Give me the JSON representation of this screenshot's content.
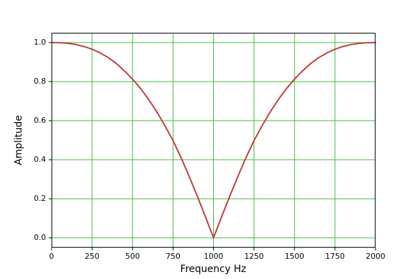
{
  "figure": {
    "background": "#ffffff",
    "frame_color": "#000000"
  },
  "chart_data": {
    "type": "line",
    "title": "",
    "xlabel": "Frequency Hz",
    "ylabel": "Amplitude",
    "xlim": [
      0,
      2000
    ],
    "ylim": [
      -0.05,
      1.05
    ],
    "grid": {
      "visible": true,
      "color": "#3cbe3c"
    },
    "legend": {
      "visible": false
    },
    "x_ticks": [
      {
        "value": 0,
        "label": "0"
      },
      {
        "value": 250,
        "label": "250"
      },
      {
        "value": 500,
        "label": "500"
      },
      {
        "value": 750,
        "label": "750"
      },
      {
        "value": 1000,
        "label": "1000"
      },
      {
        "value": 1250,
        "label": "1250"
      },
      {
        "value": 1500,
        "label": "1500"
      },
      {
        "value": 1750,
        "label": "1750"
      },
      {
        "value": 2000,
        "label": "2000"
      }
    ],
    "y_ticks": [
      {
        "value": 0.0,
        "label": "0.0"
      },
      {
        "value": 0.2,
        "label": "0.2"
      },
      {
        "value": 0.4,
        "label": "0.4"
      },
      {
        "value": 0.6,
        "label": "0.6"
      },
      {
        "value": 0.8,
        "label": "0.8"
      },
      {
        "value": 1.0,
        "label": "1.0"
      }
    ],
    "series": [
      {
        "name": "notch-filter-response",
        "color": "#c23b3c",
        "linewidth": 2,
        "x": [
          0,
          50,
          100,
          150,
          200,
          250,
          300,
          350,
          400,
          450,
          500,
          550,
          600,
          650,
          700,
          750,
          800,
          850,
          900,
          950,
          1000,
          1050,
          1100,
          1150,
          1200,
          1250,
          1300,
          1350,
          1400,
          1450,
          1500,
          1550,
          1600,
          1650,
          1700,
          1750,
          1800,
          1850,
          1900,
          1950,
          2000
        ],
        "y": [
          1.0,
          0.999,
          0.996,
          0.99,
          0.98,
          0.966,
          0.947,
          0.923,
          0.893,
          0.855,
          0.813,
          0.764,
          0.708,
          0.645,
          0.574,
          0.498,
          0.41,
          0.314,
          0.213,
          0.108,
          0.0,
          0.108,
          0.213,
          0.314,
          0.41,
          0.498,
          0.574,
          0.645,
          0.708,
          0.764,
          0.813,
          0.855,
          0.893,
          0.923,
          0.947,
          0.966,
          0.98,
          0.99,
          0.996,
          0.999,
          1.0
        ]
      }
    ]
  }
}
